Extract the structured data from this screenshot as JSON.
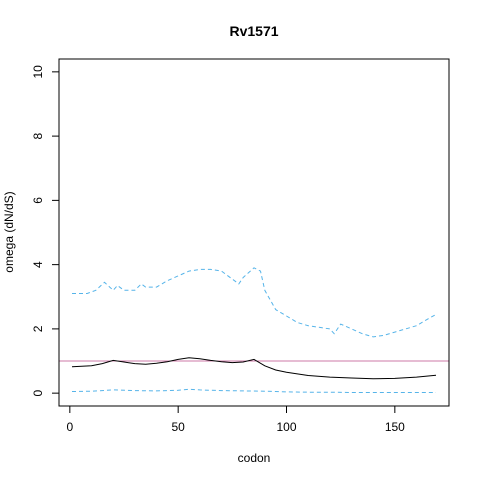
{
  "chart_data": {
    "type": "line",
    "title": "Rv1571",
    "xlabel": "codon",
    "ylabel": "omega (dN/dS)",
    "xlim": [
      -5,
      175
    ],
    "ylim": [
      -0.4,
      10.4
    ],
    "xticks": [
      0,
      50,
      100,
      150
    ],
    "yticks": [
      0,
      2,
      4,
      6,
      8,
      10
    ],
    "reference_line": {
      "y": 1.0,
      "color": "#cc79a7"
    },
    "series": [
      {
        "role": "upper-ci",
        "color": "#56b4e9",
        "style": "dashed",
        "x": [
          1,
          8,
          12,
          16,
          20,
          22,
          25,
          30,
          33,
          35,
          40,
          45,
          50,
          55,
          60,
          65,
          70,
          75,
          78,
          80,
          85,
          88,
          90,
          95,
          100,
          105,
          110,
          115,
          120,
          122,
          125,
          130,
          135,
          140,
          145,
          150,
          155,
          160,
          165,
          169
        ],
        "y": [
          3.1,
          3.1,
          3.2,
          3.45,
          3.2,
          3.35,
          3.2,
          3.2,
          3.4,
          3.3,
          3.3,
          3.5,
          3.65,
          3.8,
          3.85,
          3.85,
          3.8,
          3.55,
          3.4,
          3.6,
          3.9,
          3.8,
          3.2,
          2.6,
          2.4,
          2.2,
          2.1,
          2.05,
          2.0,
          1.85,
          2.15,
          2.0,
          1.85,
          1.75,
          1.8,
          1.9,
          2.0,
          2.1,
          2.3,
          2.45
        ]
      },
      {
        "role": "omega",
        "color": "#000000",
        "style": "solid",
        "x": [
          1,
          10,
          15,
          20,
          25,
          30,
          35,
          40,
          45,
          50,
          55,
          60,
          65,
          70,
          75,
          80,
          85,
          90,
          95,
          100,
          105,
          110,
          120,
          130,
          140,
          150,
          160,
          169
        ],
        "y": [
          0.82,
          0.85,
          0.92,
          1.02,
          0.97,
          0.92,
          0.9,
          0.93,
          0.98,
          1.05,
          1.1,
          1.07,
          1.02,
          0.98,
          0.95,
          0.97,
          1.05,
          0.85,
          0.72,
          0.65,
          0.6,
          0.55,
          0.5,
          0.47,
          0.45,
          0.46,
          0.5,
          0.56
        ]
      },
      {
        "role": "lower-ci",
        "color": "#56b4e9",
        "style": "dashed",
        "x": [
          1,
          10,
          20,
          30,
          40,
          50,
          55,
          60,
          70,
          80,
          90,
          100,
          110,
          120,
          130,
          140,
          150,
          160,
          169
        ],
        "y": [
          0.05,
          0.06,
          0.1,
          0.08,
          0.07,
          0.09,
          0.12,
          0.1,
          0.08,
          0.07,
          0.06,
          0.04,
          0.03,
          0.03,
          0.02,
          0.02,
          0.02,
          0.02,
          0.02
        ]
      }
    ]
  }
}
